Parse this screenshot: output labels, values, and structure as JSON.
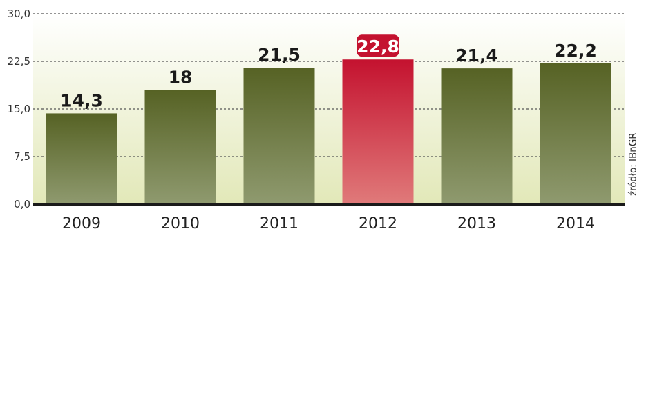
{
  "chart_data": {
    "type": "bar",
    "categories": [
      "2009",
      "2010",
      "2011",
      "2012",
      "2013",
      "2014"
    ],
    "values": [
      14.3,
      18,
      21.5,
      22.8,
      21.4,
      22.2
    ],
    "value_labels": [
      "14,3",
      "18",
      "21,5",
      "22,8",
      "21,4",
      "22,2"
    ],
    "highlight_index": 3,
    "ylim": [
      0,
      30
    ],
    "yticks": [
      0,
      7.5,
      15,
      22.5,
      30
    ],
    "ytick_labels": [
      "0,0",
      "7,5",
      "15,0",
      "22,5",
      "30,0"
    ],
    "grid": true,
    "source": "źródło: IBnGR",
    "colors": {
      "bar_top": "#566224",
      "bar_bottom": "#8f9a6f",
      "highlight_top": "#c4122f",
      "highlight_bottom": "#e07a7a",
      "highlight_label_bg": "#c4122f",
      "background_top": "#ffffff",
      "background_bottom": "#e2e8b8",
      "baseline": "#1a1a1a",
      "grid": "#555555"
    }
  }
}
